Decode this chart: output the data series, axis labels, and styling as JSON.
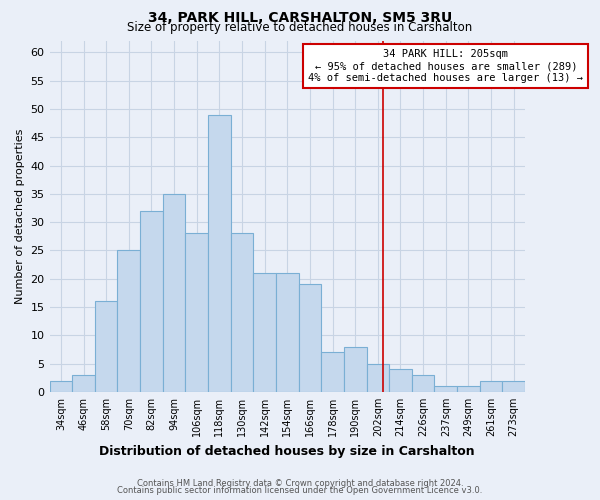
{
  "title": "34, PARK HILL, CARSHALTON, SM5 3RU",
  "subtitle": "Size of property relative to detached houses in Carshalton",
  "xlabel": "Distribution of detached houses by size in Carshalton",
  "ylabel": "Number of detached properties",
  "bin_labels": [
    "34sqm",
    "46sqm",
    "58sqm",
    "70sqm",
    "82sqm",
    "94sqm",
    "106sqm",
    "118sqm",
    "130sqm",
    "142sqm",
    "154sqm",
    "166sqm",
    "178sqm",
    "190sqm",
    "202sqm",
    "214sqm",
    "226sqm",
    "237sqm",
    "249sqm",
    "261sqm",
    "273sqm"
  ],
  "bar_heights": [
    2,
    3,
    16,
    25,
    32,
    35,
    28,
    49,
    28,
    21,
    21,
    19,
    7,
    8,
    5,
    4,
    3,
    1,
    1,
    2,
    2
  ],
  "bar_color": "#c5d8ed",
  "bar_edge_color": "#7aafd4",
  "ylim": [
    0,
    62
  ],
  "yticks": [
    0,
    5,
    10,
    15,
    20,
    25,
    30,
    35,
    40,
    45,
    50,
    55,
    60
  ],
  "vline_x_index": 14.25,
  "annotation_title": "34 PARK HILL: 205sqm",
  "annotation_line1": "← 95% of detached houses are smaller (289)",
  "annotation_line2": "4% of semi-detached houses are larger (13) →",
  "annotation_box_color": "#ffffff",
  "annotation_box_edge": "#cc0000",
  "vline_color": "#cc0000",
  "grid_color": "#c8d4e4",
  "background_color": "#eaeff8",
  "title_fontsize": 10,
  "subtitle_fontsize": 8.5,
  "footer_line1": "Contains HM Land Registry data © Crown copyright and database right 2024.",
  "footer_line2": "Contains public sector information licensed under the Open Government Licence v3.0."
}
